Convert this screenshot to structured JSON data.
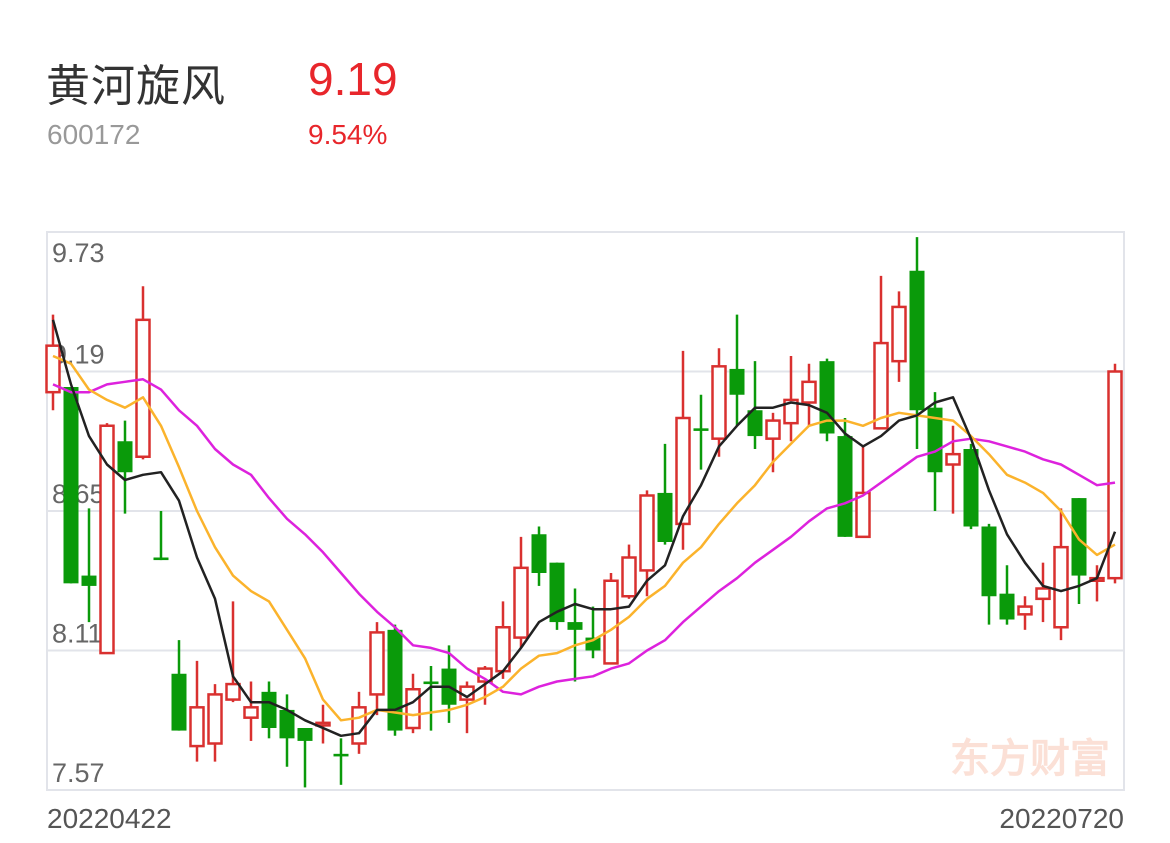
{
  "header": {
    "name": "黄河旋风",
    "code": "600172",
    "price": "9.19",
    "change_pct": "9.54%"
  },
  "watermark": "东方财富",
  "chart_data": {
    "type": "candlestick",
    "ylim": [
      7.57,
      9.73
    ],
    "y_ticks": [
      "9.73",
      "9.19",
      "8.65",
      "8.11",
      "7.57"
    ],
    "y_tick_values": [
      9.73,
      9.19,
      8.65,
      8.11,
      7.57
    ],
    "x_start_label": "20220422",
    "x_end_label": "20220720",
    "grid": true,
    "colors": {
      "up": "#d9302f",
      "down": "#0a9a0a",
      "ma5": "#222222",
      "ma10": "#fbb32c",
      "ma20": "#dd22dd",
      "grid": "#e2e4ea",
      "watermark": "#fbe0d6"
    },
    "candles_ohlc_note_order": [
      "open",
      "close",
      "high",
      "low"
    ],
    "candles": [
      [
        9.11,
        9.29,
        9.41,
        9.04
      ],
      [
        9.13,
        8.37,
        9.13,
        8.37
      ],
      [
        8.4,
        8.36,
        8.66,
        8.22
      ],
      [
        8.1,
        8.98,
        8.99,
        8.1
      ],
      [
        8.92,
        8.8,
        9.0,
        8.64
      ],
      [
        8.86,
        9.39,
        9.52,
        8.85
      ],
      [
        8.47,
        8.46,
        8.65,
        8.46
      ],
      [
        8.02,
        7.8,
        8.15,
        7.8
      ],
      [
        7.74,
        7.89,
        8.07,
        7.68
      ],
      [
        7.75,
        7.94,
        7.98,
        7.68
      ],
      [
        7.92,
        7.98,
        8.3,
        7.91
      ],
      [
        7.85,
        7.89,
        7.99,
        7.76
      ],
      [
        7.95,
        7.81,
        7.99,
        7.77
      ],
      [
        7.88,
        7.77,
        7.94,
        7.66
      ],
      [
        7.81,
        7.76,
        7.81,
        7.58
      ],
      [
        7.82,
        7.83,
        7.9,
        7.75
      ],
      [
        7.71,
        7.7,
        7.77,
        7.59
      ],
      [
        7.75,
        7.89,
        7.95,
        7.71
      ],
      [
        7.94,
        8.18,
        8.22,
        7.86
      ],
      [
        8.19,
        7.8,
        8.21,
        7.78
      ],
      [
        7.81,
        7.96,
        8.02,
        7.79
      ],
      [
        7.99,
        7.98,
        8.05,
        7.8
      ],
      [
        8.04,
        7.9,
        8.13,
        7.83
      ],
      [
        7.92,
        7.97,
        7.99,
        7.79
      ],
      [
        7.99,
        8.04,
        8.05,
        7.9
      ],
      [
        8.03,
        8.2,
        8.3,
        8.0
      ],
      [
        8.16,
        8.43,
        8.55,
        8.12
      ],
      [
        8.56,
        8.41,
        8.59,
        8.36
      ],
      [
        8.45,
        8.22,
        8.45,
        8.19
      ],
      [
        8.22,
        8.19,
        8.35,
        7.99
      ],
      [
        8.16,
        8.11,
        8.28,
        8.08
      ],
      [
        8.06,
        8.38,
        8.41,
        8.06
      ],
      [
        8.32,
        8.47,
        8.52,
        8.31
      ],
      [
        8.42,
        8.71,
        8.73,
        8.32
      ],
      [
        8.72,
        8.53,
        8.91,
        8.52
      ],
      [
        8.6,
        9.01,
        9.27,
        8.5
      ],
      [
        8.97,
        8.96,
        9.1,
        8.81
      ],
      [
        8.93,
        9.21,
        9.28,
        8.86
      ],
      [
        9.2,
        9.1,
        9.41,
        8.98
      ],
      [
        9.04,
        8.94,
        9.23,
        8.89
      ],
      [
        8.93,
        9.0,
        9.03,
        8.8
      ],
      [
        8.99,
        9.08,
        9.25,
        8.92
      ],
      [
        9.07,
        9.15,
        9.22,
        8.98
      ],
      [
        9.23,
        8.95,
        9.24,
        8.92
      ],
      [
        8.94,
        8.55,
        9.01,
        8.55
      ],
      [
        8.55,
        8.72,
        8.9,
        8.55
      ],
      [
        8.97,
        9.3,
        9.56,
        8.97
      ],
      [
        9.23,
        9.44,
        9.5,
        9.15
      ],
      [
        9.58,
        9.04,
        9.71,
        8.89
      ],
      [
        9.05,
        8.8,
        9.11,
        8.65
      ],
      [
        8.83,
        8.87,
        8.98,
        8.64
      ],
      [
        8.89,
        8.59,
        8.91,
        8.58
      ],
      [
        8.59,
        8.32,
        8.6,
        8.21
      ],
      [
        8.33,
        8.23,
        8.44,
        8.21
      ],
      [
        8.25,
        8.28,
        8.32,
        8.19
      ],
      [
        8.31,
        8.35,
        8.45,
        8.22
      ],
      [
        8.2,
        8.51,
        8.66,
        8.15
      ],
      [
        8.7,
        8.4,
        8.7,
        8.29
      ],
      [
        8.38,
        8.39,
        8.44,
        8.3
      ],
      [
        8.39,
        9.19,
        9.22,
        8.37
      ]
    ],
    "ma5": [
      9.39,
      9.14,
      8.94,
      8.83,
      8.77,
      8.79,
      8.8,
      8.69,
      8.47,
      8.31,
      8.01,
      7.91,
      7.91,
      7.88,
      7.84,
      7.81,
      7.78,
      7.79,
      7.88,
      7.88,
      7.91,
      7.97,
      7.97,
      7.93,
      7.98,
      8.03,
      8.12,
      8.22,
      8.26,
      8.29,
      8.27,
      8.27,
      8.28,
      8.38,
      8.44,
      8.63,
      8.75,
      8.9,
      8.98,
      9.05,
      9.05,
      9.07,
      9.06,
      9.03,
      8.95,
      8.9,
      8.94,
      9.0,
      9.02,
      9.07,
      9.09,
      8.93,
      8.73,
      8.56,
      8.45,
      8.36,
      8.34,
      8.36,
      8.39,
      8.57
    ],
    "ma10": [
      9.25,
      9.22,
      9.12,
      9.08,
      9.05,
      9.09,
      8.98,
      8.82,
      8.65,
      8.51,
      8.4,
      8.34,
      8.3,
      8.19,
      8.08,
      7.92,
      7.84,
      7.85,
      7.88,
      7.87,
      7.86,
      7.87,
      7.88,
      7.9,
      7.93,
      7.97,
      8.04,
      8.09,
      8.1,
      8.13,
      8.15,
      8.19,
      8.24,
      8.31,
      8.36,
      8.45,
      8.51,
      8.6,
      8.68,
      8.75,
      8.84,
      8.91,
      8.98,
      9.0,
      9.0,
      8.98,
      9.01,
      9.03,
      9.02,
      9.01,
      9.0,
      8.94,
      8.87,
      8.79,
      8.76,
      8.72,
      8.65,
      8.54,
      8.48,
      8.52
    ],
    "ma20": [
      9.14,
      9.11,
      9.11,
      9.14,
      9.15,
      9.16,
      9.12,
      9.04,
      8.98,
      8.89,
      8.83,
      8.79,
      8.7,
      8.62,
      8.56,
      8.49,
      8.41,
      8.33,
      8.26,
      8.2,
      8.13,
      8.12,
      8.1,
      8.04,
      8.0,
      7.95,
      7.94,
      7.97,
      7.99,
      8.0,
      8.01,
      8.04,
      8.06,
      8.11,
      8.15,
      8.22,
      8.28,
      8.34,
      8.39,
      8.45,
      8.5,
      8.55,
      8.61,
      8.66,
      8.68,
      8.71,
      8.76,
      8.81,
      8.86,
      8.88,
      8.92,
      8.93,
      8.92,
      8.9,
      8.88,
      8.85,
      8.83,
      8.79,
      8.75,
      8.76
    ]
  }
}
